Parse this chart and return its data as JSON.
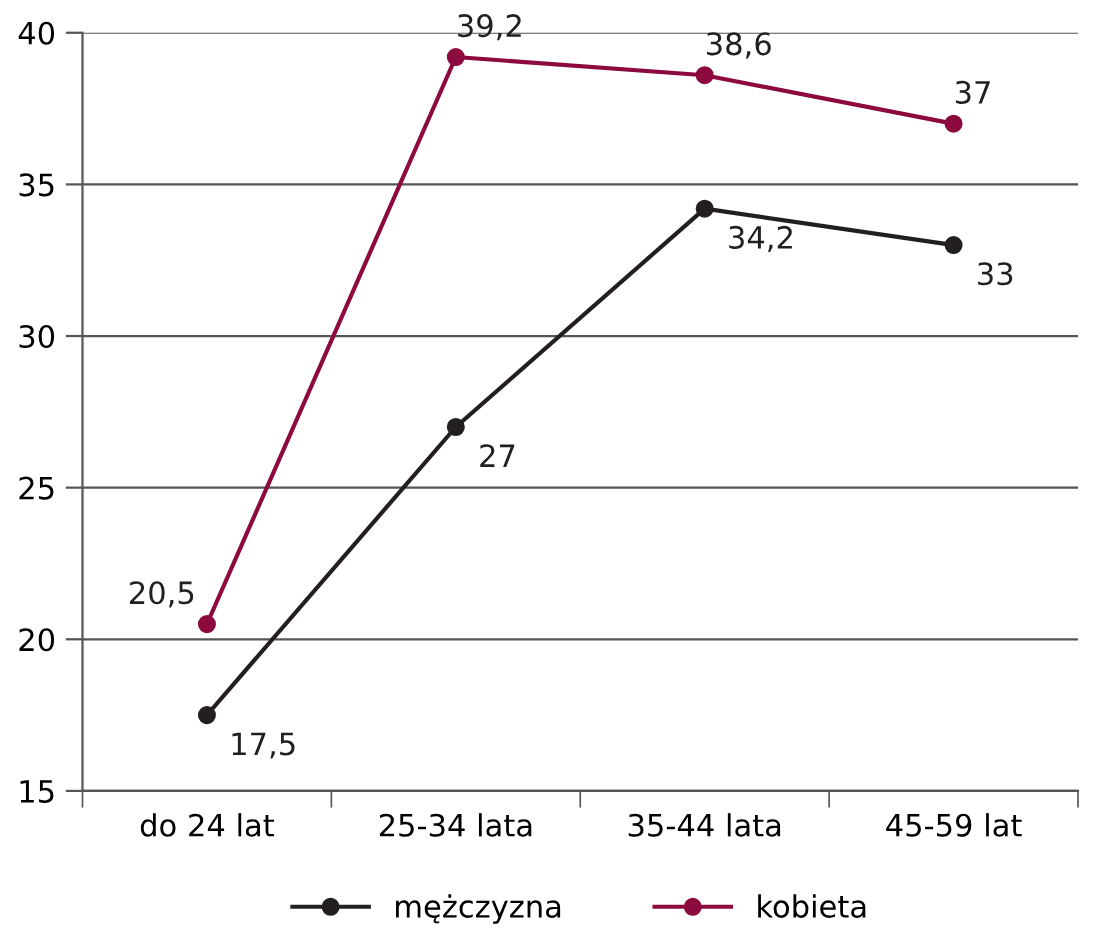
{
  "chart_data": {
    "type": "line",
    "categories": [
      "do 24 lat",
      "25-34 lata",
      "35-44 lata",
      "45-59 lat"
    ],
    "series": [
      {
        "name": "mężczyzna",
        "color": "#231f20",
        "values": [
          17.5,
          27,
          34.2,
          33
        ],
        "value_labels": [
          "17,5",
          "27",
          "34,2",
          "33"
        ]
      },
      {
        "name": "kobieta",
        "color": "#8c0a3d",
        "values": [
          20.5,
          39.2,
          38.6,
          37
        ],
        "value_labels": [
          "20,5",
          "39,2",
          "38,6",
          "37"
        ]
      }
    ],
    "ylim": [
      15,
      40
    ],
    "yticks": [
      15,
      20,
      25,
      30,
      35,
      40
    ],
    "grid": "y",
    "legend": "bottom",
    "marker": "circle",
    "line_style": "solid"
  }
}
